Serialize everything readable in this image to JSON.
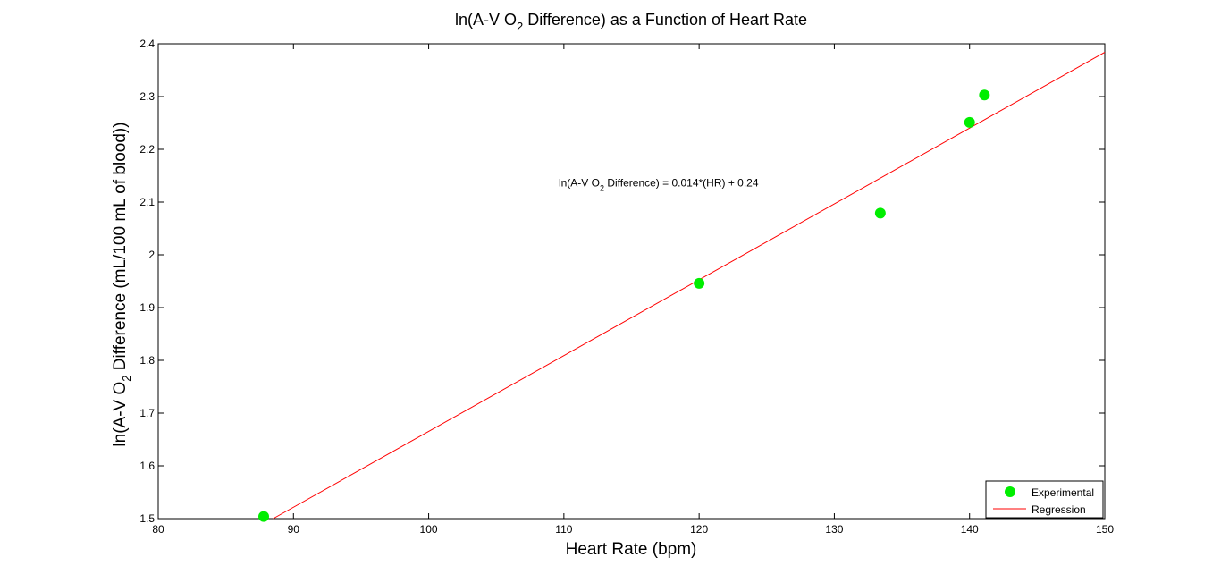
{
  "chart_data": {
    "type": "scatter",
    "title": {
      "prefix": "ln(A-V O",
      "sub": "2",
      "suffix": " Difference) as a Function of Heart Rate"
    },
    "xlabel": "Heart Rate (bpm)",
    "ylabel": {
      "prefix": "ln(A-V O",
      "sub": "2",
      "suffix": " Difference (mL/100 mL of blood))"
    },
    "xlim": [
      80,
      150
    ],
    "ylim": [
      1.5,
      2.4
    ],
    "xticks": [
      80,
      90,
      100,
      110,
      120,
      130,
      140,
      150
    ],
    "yticks": [
      1.5,
      1.6,
      1.7,
      1.8,
      1.9,
      2.0,
      2.1,
      2.2,
      2.3,
      2.4
    ],
    "ytick_labels": [
      "1.5",
      "1.6",
      "1.7",
      "1.8",
      "1.9",
      "2",
      "2.1",
      "2.2",
      "2.3",
      "2.4"
    ],
    "grid": false,
    "legend_position": "bottom-right",
    "series": [
      {
        "name": "Experimental",
        "kind": "points",
        "color": "#00ee00",
        "x": [
          87.8,
          120.0,
          133.4,
          140.0,
          141.1
        ],
        "y": [
          1.504,
          1.946,
          2.079,
          2.251,
          2.303
        ]
      },
      {
        "name": "Regression",
        "kind": "line",
        "color": "#ff0000",
        "x": [
          88.5,
          150
        ],
        "y": [
          1.5,
          2.384
        ]
      }
    ],
    "annotation": {
      "prefix": "ln(A-V O",
      "sub": "2",
      "suffix": " Difference) = 0.014*(HR) + 0.24",
      "x": 117,
      "y": 2.13
    }
  }
}
